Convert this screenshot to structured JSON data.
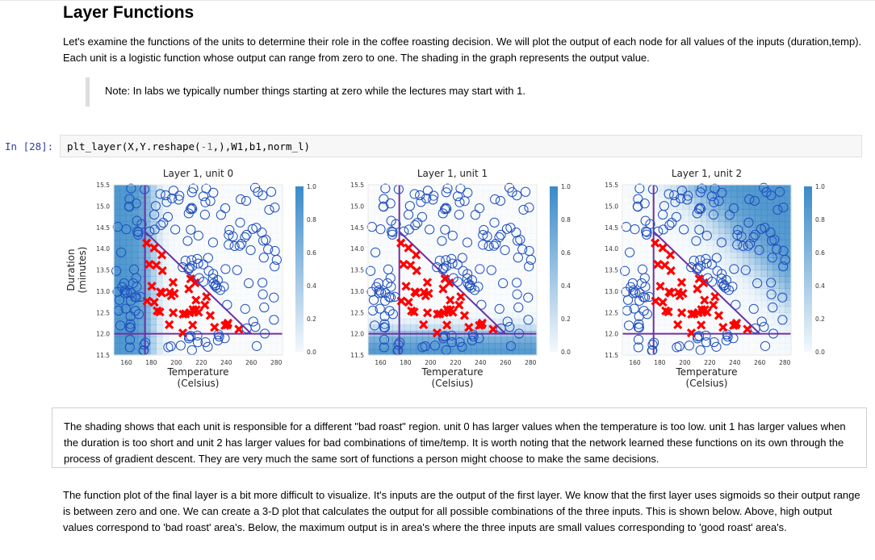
{
  "heading": "Layer Functions",
  "intro": "Let's examine the functions of the units to determine their role in the coffee roasting decision. We will plot the output of each node for all values of the inputs (duration,temp). Each unit is a logistic function whose output can range from zero to one. The shading in the graph represents the output value.",
  "note": "Note: In labs we typically number things starting at zero while the lectures may start with 1.",
  "cell": {
    "prompt": "In [28]:",
    "code_fn": "plt_layer(X,Y.reshape(",
    "code_num": "-1",
    "code_rest": ",),W1,b1,norm_l)"
  },
  "explain": "The shading shows that each unit is responsible for a different \"bad roast\" region. unit 0 has larger values when the temperature is too low. unit 1 has larger values when the duration is too short and unit 2 has larger values for bad combinations of time/temp. It is worth noting that the network learned these functions on its own through the process of gradient descent. They are very much the same sort of functions a person might choose to make the same decisions.",
  "final": "The function plot of the final layer is a bit more difficult to visualize. It's inputs are the output of the first layer. We know that the first layer uses sigmoids so their output range is between zero and one. We can create a 3-D plot that calculates the output for all possible combinations of the three inputs. This is shown below. Above, high output values correspond to 'bad roast' area's. Below, the maximum output is in area's where the three inputs are small values corresponding to 'good roast' area's.",
  "colors": {
    "good_marker": "#1f4fbf",
    "bad_marker": "#ff0000",
    "boundary": "#7030a0",
    "shade": "#3a8ac8"
  },
  "chart_data": [
    {
      "type": "scatter",
      "title": "Layer 1, unit 0",
      "xlabel": "Temperature\n(Celsius)",
      "ylabel": "Duration\n(minutes)",
      "xlim": [
        150,
        285
      ],
      "ylim": [
        11.5,
        15.5
      ],
      "xticks": [
        160,
        180,
        200,
        220,
        240,
        260,
        280
      ],
      "yticks": [
        11.5,
        12.0,
        12.5,
        13.0,
        13.5,
        14.0,
        14.5,
        15.0,
        15.5
      ],
      "colorbar_ticks": [
        0.0,
        0.2,
        0.4,
        0.6,
        0.8,
        1.0
      ],
      "shading": "high output for low temperature"
    },
    {
      "type": "scatter",
      "title": "Layer 1, unit 1",
      "xlabel": "Temperature\n(Celsius)",
      "ylabel": "",
      "xlim": [
        150,
        285
      ],
      "ylim": [
        11.5,
        15.5
      ],
      "xticks": [
        160,
        180,
        200,
        220,
        240,
        260,
        280
      ],
      "yticks": [
        11.5,
        12.0,
        12.5,
        13.0,
        13.5,
        14.0,
        14.5,
        15.0,
        15.5
      ],
      "colorbar_ticks": [
        0.0,
        0.2,
        0.4,
        0.6,
        0.8,
        1.0
      ],
      "shading": "high output for short duration"
    },
    {
      "type": "scatter",
      "title": "Layer 1, unit 2",
      "xlabel": "Temperature\n(Celsius)",
      "ylabel": "",
      "xlim": [
        150,
        285
      ],
      "ylim": [
        11.5,
        15.5
      ],
      "xticks": [
        160,
        180,
        200,
        220,
        240,
        260,
        280
      ],
      "yticks": [
        11.5,
        12.0,
        12.5,
        13.0,
        13.5,
        14.0,
        14.5,
        15.0,
        15.5
      ],
      "colorbar_ticks": [
        0.0,
        0.2,
        0.4,
        0.6,
        0.8,
        1.0
      ],
      "shading": "high output for bad combinations of time/temp"
    }
  ]
}
